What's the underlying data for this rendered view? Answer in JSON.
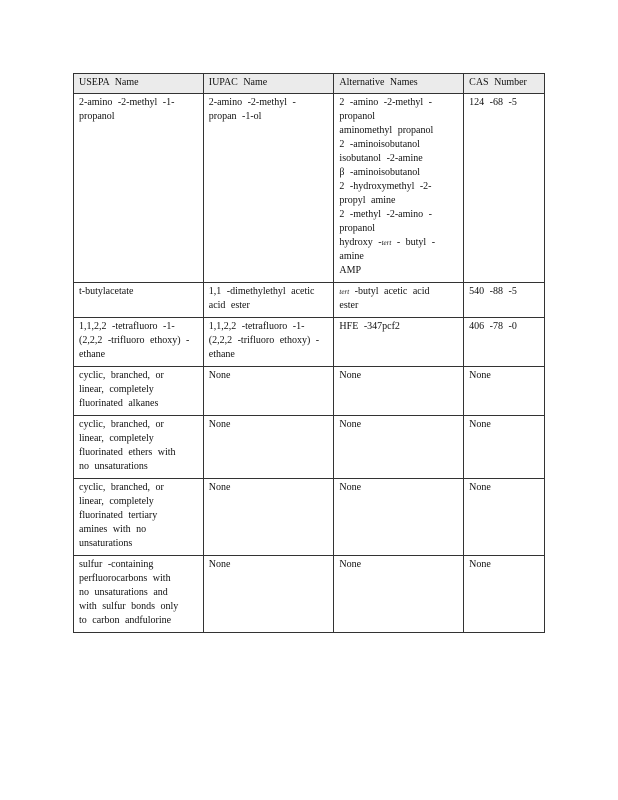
{
  "table": {
    "headers": [
      "USEPA   Name",
      "IUPAC   Name",
      "Alternative    Names",
      "CAS   Number"
    ],
    "rows": [
      {
        "usepa": "2-amino  -2-methyl  -1-\npropanol",
        "iupac": "2-amino  -2-methyl  -\npropan  -1-ol",
        "alt_lines": [
          "2 -amino  -2-methyl  -",
          "propanol",
          "aminomethyl     propanol",
          "2 -aminoisobutanol",
          "isobutanol   -2-amine",
          "β -aminoisobutanol",
          "2 -hydroxymethyl    -2-",
          "propyl  amine",
          "2 -methyl  -2-amino  -",
          "propanol"
        ],
        "alt_hydroxy": {
          "pre": "hydroxy   -",
          "italic": "tert",
          "post": "  - butyl -"
        },
        "alt_tail": "amine\nAMP",
        "cas": "124 -68 -5"
      },
      {
        "usepa": "t-butylacetate",
        "iupac": "1,1 -dimethylethyl     acetic\nacid  ester",
        "alt_italic": "tert",
        "alt_rest": "  -butyl  acetic   acid\nester",
        "cas": "540 -88 -5"
      },
      {
        "usepa": "1,1,2,2  -tetrafluoro   -1-\n(2,2,2  -trifluoro  ethoxy)  -\nethane",
        "iupac": "1,1,2,2  -tetrafluoro   -1-\n(2,2,2  -trifluoro  ethoxy)  -\nethane",
        "alt": "HFE  -347pcf2",
        "cas": "406 -78 -0"
      },
      {
        "usepa": "cyclic,  branched,     or\nlinear,   completely\nfluorinated    alkanes",
        "iupac": "None",
        "alt": "None",
        "cas": "None"
      },
      {
        "usepa": "cyclic,  branched,     or\nlinear,   completely\nfluorinated    ethers   with\nno  unsaturations",
        "iupac": "None",
        "alt": "None",
        "cas": "None"
      },
      {
        "usepa": "cyclic,  branched,     or\nlinear,   completely\nfluorinated    tertiary\namines    with  no\nunsaturations",
        "iupac": "None",
        "alt": "None",
        "cas": "None"
      },
      {
        "usepa": "sulfur  -containing\nperfluorocarbons      with\nno  unsaturations     and\nwith  sulfur  bonds   only\nto carbon    andfulorine",
        "iupac": "None",
        "alt": "None",
        "cas": "None"
      }
    ]
  }
}
